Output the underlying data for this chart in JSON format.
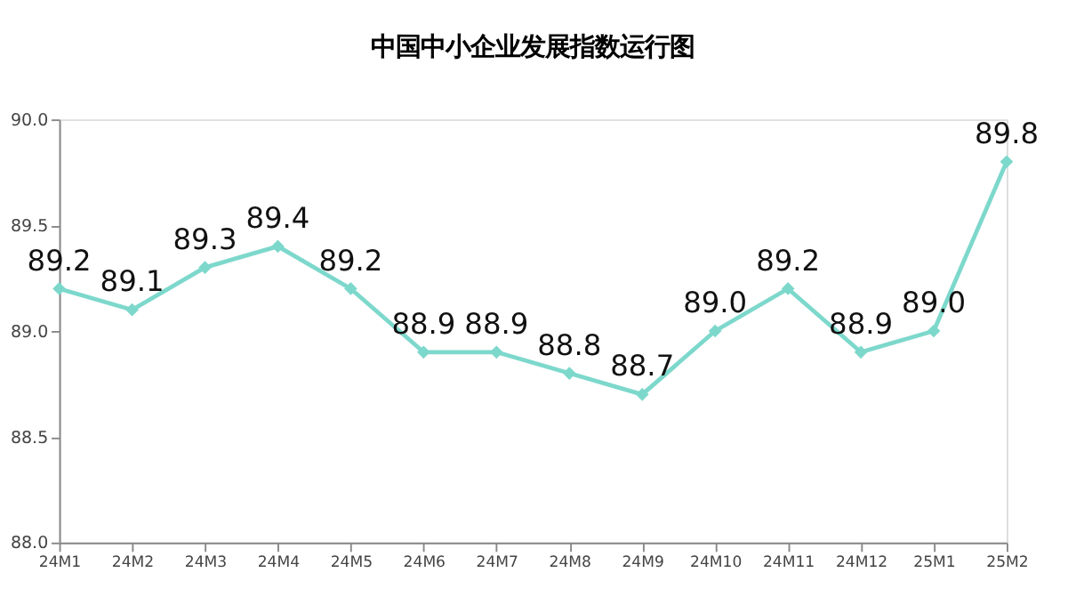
{
  "chart_data": {
    "type": "line",
    "title": "中国中小企业发展指数运行图",
    "categories": [
      "24M1",
      "24M2",
      "24M3",
      "24M4",
      "24M5",
      "24M6",
      "24M7",
      "24M8",
      "24M9",
      "24M10",
      "24M11",
      "24M12",
      "25M1",
      "25M2"
    ],
    "series": [
      {
        "color": "#7dd8cc",
        "values": [
          89.2,
          89.1,
          89.3,
          89.4,
          89.2,
          88.9,
          88.9,
          88.8,
          88.7,
          89.0,
          89.2,
          88.9,
          89.0,
          89.8
        ]
      }
    ],
    "value_labels": [
      "89.2",
      "89.1",
      "89.3",
      "89.4",
      "89.2",
      "88.9",
      "88.9",
      "88.8",
      "88.7",
      "89.0",
      "89.2",
      "88.9",
      "89.0",
      "89.8"
    ],
    "ylim": [
      88.0,
      90.0
    ],
    "yticks": [
      {
        "value": 88.0,
        "label": "88.0"
      },
      {
        "value": 88.5,
        "label": "88.5"
      },
      {
        "value": 89.0,
        "label": "89.0"
      },
      {
        "value": 89.5,
        "label": "89.5"
      },
      {
        "value": 90.0,
        "label": "90.0"
      }
    ],
    "grid": false,
    "marker": "diamond",
    "line_style": "solid"
  }
}
